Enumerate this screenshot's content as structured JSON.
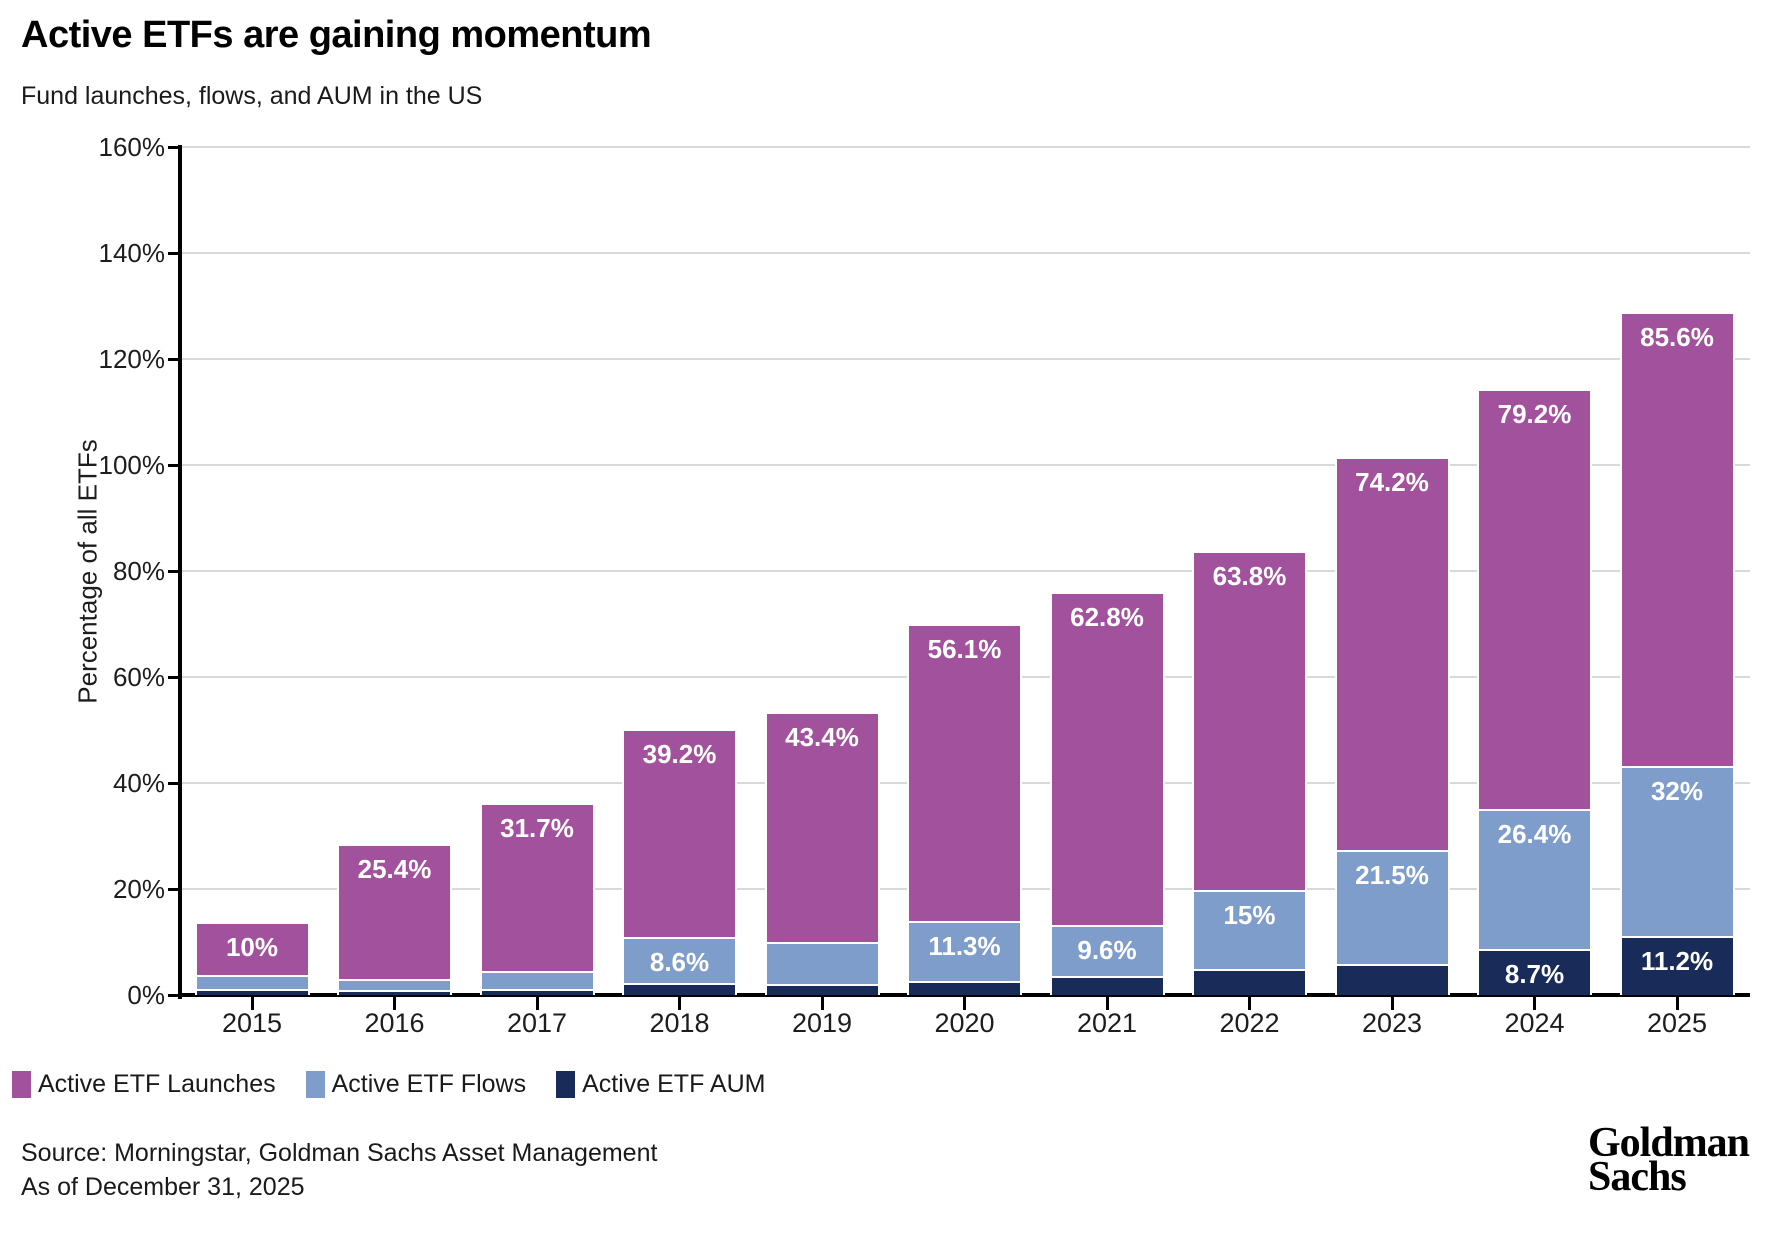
{
  "header": {
    "title": "Active ETFs are gaining momentum",
    "subtitle": "Fund launches, flows, and AUM in the US"
  },
  "chart_data": {
    "type": "bar",
    "stacked": true,
    "title": "Active ETFs are gaining momentum",
    "subtitle": "Fund launches, flows, and AUM in the US",
    "categories": [
      "2015",
      "2016",
      "2017",
      "2018",
      "2019",
      "2020",
      "2021",
      "2022",
      "2023",
      "2024",
      "2025"
    ],
    "series": [
      {
        "name": "Active ETF Launches",
        "color": "#a2529d",
        "values": [
          10,
          25.4,
          31.7,
          39.2,
          43.4,
          56.1,
          62.8,
          63.8,
          74.2,
          79.2,
          85.6
        ],
        "labels": [
          "10%",
          "25.4%",
          "31.7%",
          "39.2%",
          "43.4%",
          "56.1%",
          "62.8%",
          "63.8%",
          "74.2%",
          "79.2%",
          "85.6%"
        ]
      },
      {
        "name": "Active ETF Flows",
        "color": "#7f9dcb",
        "values": [
          2.6,
          2.2,
          3.4,
          8.6,
          7.9,
          11.3,
          9.6,
          15,
          21.5,
          26.4,
          32
        ],
        "labels": [
          null,
          null,
          null,
          "8.6%",
          null,
          "11.3%",
          "9.6%",
          "15%",
          "21.5%",
          "26.4%",
          "32%"
        ]
      },
      {
        "name": "Active ETF AUM",
        "color": "#182b59",
        "values": [
          1.1,
          0.9,
          1.1,
          2.3,
          2.1,
          2.6,
          3.6,
          4.9,
          5.9,
          8.7,
          11.2
        ],
        "labels": [
          null,
          null,
          null,
          null,
          null,
          null,
          null,
          null,
          null,
          "8.7%",
          "11.2%"
        ]
      }
    ],
    "xlabel": "",
    "ylabel": "Percentage of all ETFs",
    "ylim": [
      0,
      160
    ],
    "yticks": [
      0,
      20,
      40,
      60,
      80,
      100,
      120,
      140,
      160
    ],
    "ytick_suffix": "%",
    "grid": "horizontal",
    "legend_position": "bottom-left"
  },
  "legend": {
    "items": [
      {
        "label": "Active ETF Launches",
        "color": "#a2529d"
      },
      {
        "label": "Active ETF Flows",
        "color": "#7f9dcb"
      },
      {
        "label": "Active ETF AUM",
        "color": "#182b59"
      }
    ]
  },
  "footer": {
    "source_line1": "Source: Morningstar, Goldman Sachs Asset Management",
    "source_line2": "As of December 31, 2025"
  },
  "logo": {
    "line1": "Goldman",
    "line2": "Sachs"
  }
}
